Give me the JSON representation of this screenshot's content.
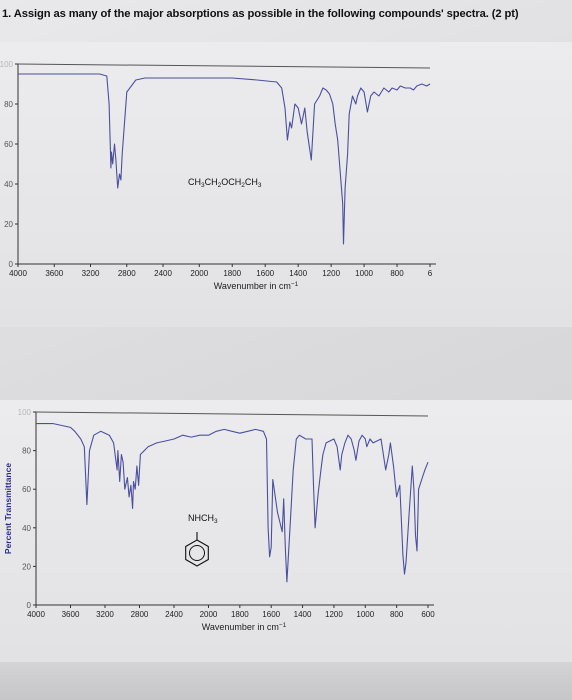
{
  "question": {
    "number": "1.",
    "text": "Assign as many of the major absorptions as possible in the following compounds' spectra. (2 pt)"
  },
  "colors": {
    "spectrum_line": "#4b4fa0",
    "axis": "#333333",
    "page": "#e4e4e6"
  },
  "chart_data": [
    {
      "type": "line",
      "compound_label": "CH3CH2OCH2CH3",
      "compound_parts": [
        "CH",
        "3",
        "CH",
        "2",
        "OCH",
        "2",
        "CH",
        "3"
      ],
      "xlabel": "Wavenumber in cm",
      "xlabel_sup": "−1",
      "ylabel": "Percent Transmittance",
      "xlim": [
        4000,
        600
      ],
      "ylim": [
        0,
        100
      ],
      "x_ticks": [
        "4000",
        "3600",
        "3200",
        "2800",
        "2400",
        "2000",
        "1800",
        "1600",
        "1400",
        "1200",
        "1000",
        "800",
        "6"
      ],
      "y_ticks": [
        "100",
        "80",
        "60",
        "40",
        "20",
        "0"
      ],
      "series": [
        {
          "x": [
            4000,
            3700,
            3400,
            3100,
            3020,
            2995,
            2975,
            2968,
            2955,
            2935,
            2920,
            2900,
            2880,
            2865,
            2850,
            2800,
            2700,
            2600,
            2400,
            2200,
            2000,
            1800,
            1650,
            1530,
            1500,
            1480,
            1465,
            1450,
            1440,
            1420,
            1400,
            1380,
            1360,
            1345,
            1320,
            1300,
            1285,
            1270,
            1250,
            1230,
            1210,
            1190,
            1175,
            1160,
            1130,
            1125,
            1115,
            1100,
            1090,
            1070,
            1050,
            1040,
            1020,
            1000,
            980,
            960,
            940,
            910,
            880,
            850,
            830,
            800,
            780,
            750,
            720,
            700,
            680,
            650,
            620,
            600
          ],
          "y": [
            95,
            95,
            95,
            95,
            94,
            80,
            48,
            56,
            50,
            60,
            52,
            38,
            45,
            42,
            55,
            86,
            92,
            93,
            93,
            93,
            93,
            93,
            92,
            91,
            88,
            78,
            62,
            71,
            68,
            80,
            78,
            70,
            78,
            66,
            52,
            80,
            82,
            84,
            88,
            87,
            85,
            80,
            70,
            62,
            30,
            10,
            38,
            55,
            75,
            84,
            80,
            84,
            88,
            86,
            76,
            84,
            86,
            84,
            88,
            86,
            88,
            87,
            89,
            88,
            88,
            87,
            89,
            90,
            89,
            90
          ]
        }
      ]
    },
    {
      "type": "line",
      "compound_label": "NHCH3",
      "compound_parts": [
        "NHCH",
        "3"
      ],
      "xlabel": "Wavenumber in cm",
      "xlabel_sup": "−1",
      "ylabel": "Percent Transmittance",
      "xlim": [
        4000,
        600
      ],
      "ylim": [
        0,
        100
      ],
      "x_ticks": [
        "4000",
        "3600",
        "3200",
        "2800",
        "2400",
        "2000",
        "1800",
        "1600",
        "1400",
        "1200",
        "1000",
        "800",
        "600"
      ],
      "y_ticks": [
        "100",
        "80",
        "60",
        "40",
        "20",
        "0"
      ],
      "series": [
        {
          "x": [
            4000,
            3800,
            3700,
            3600,
            3550,
            3480,
            3440,
            3410,
            3380,
            3330,
            3250,
            3150,
            3100,
            3060,
            3050,
            3030,
            3010,
            2990,
            2970,
            2940,
            2920,
            2900,
            2880,
            2870,
            2850,
            2830,
            2810,
            2790,
            2700,
            2600,
            2500,
            2400,
            2300,
            2200,
            2100,
            2000,
            1950,
            1900,
            1850,
            1800,
            1750,
            1700,
            1650,
            1630,
            1620,
            1610,
            1600,
            1590,
            1560,
            1530,
            1520,
            1510,
            1500,
            1480,
            1460,
            1440,
            1420,
            1400,
            1380,
            1340,
            1330,
            1320,
            1300,
            1280,
            1270,
            1250,
            1200,
            1180,
            1160,
            1150,
            1130,
            1110,
            1090,
            1070,
            1060,
            1040,
            1020,
            1000,
            990,
            970,
            950,
            900,
            870,
            850,
            840,
            820,
            800,
            780,
            760,
            750,
            740,
            720,
            700,
            690,
            680,
            670,
            660,
            640,
            620,
            600
          ],
          "y": [
            94,
            94,
            93,
            92,
            90,
            86,
            82,
            52,
            80,
            88,
            90,
            88,
            84,
            70,
            80,
            64,
            78,
            74,
            60,
            66,
            56,
            62,
            50,
            64,
            60,
            72,
            62,
            78,
            82,
            84,
            85,
            86,
            88,
            87,
            88,
            88,
            90,
            91,
            90,
            89,
            90,
            91,
            90,
            86,
            40,
            25,
            30,
            65,
            48,
            38,
            55,
            30,
            12,
            40,
            70,
            86,
            88,
            87,
            86,
            86,
            62,
            40,
            58,
            72,
            78,
            84,
            86,
            82,
            70,
            78,
            84,
            88,
            86,
            80,
            75,
            85,
            88,
            86,
            82,
            86,
            84,
            86,
            70,
            78,
            84,
            72,
            56,
            62,
            26,
            16,
            22,
            48,
            72,
            60,
            36,
            28,
            60,
            65,
            70,
            74
          ]
        }
      ]
    }
  ]
}
